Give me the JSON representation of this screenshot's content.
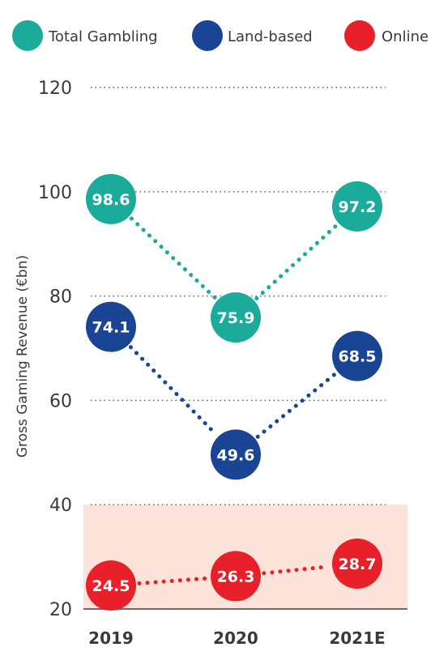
{
  "chart_data": {
    "type": "line",
    "categories": [
      "2019",
      "2020",
      "2021E"
    ],
    "series": [
      {
        "name": "Total Gambling",
        "values": [
          98.6,
          75.9,
          97.2
        ],
        "color": "#1aab9b"
      },
      {
        "name": "Land-based",
        "values": [
          74.1,
          49.6,
          68.5
        ],
        "color": "#1a4595"
      },
      {
        "name": "Online",
        "values": [
          24.5,
          26.3,
          28.7
        ],
        "color": "#e8202a"
      }
    ],
    "ylabel": "Gross Gaming Revenue (€bn)",
    "xlabel": "",
    "ylim": [
      20,
      120
    ],
    "yticks": [
      20,
      40,
      60,
      80,
      100,
      120
    ],
    "grid": "dotted horizontal",
    "legend_position": "top",
    "highlight_band": {
      "from": 20,
      "to": 40,
      "color": "#fbe3da"
    }
  }
}
